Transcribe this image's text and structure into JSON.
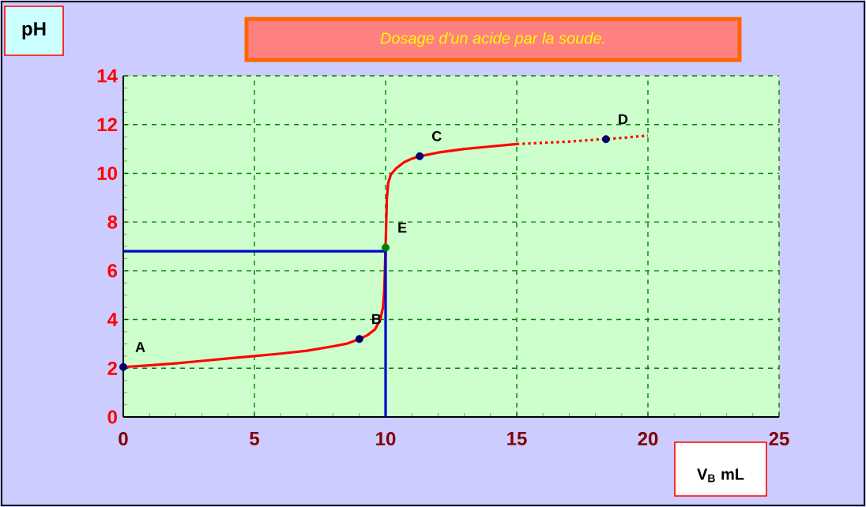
{
  "chart_data": {
    "type": "line",
    "title": "Dosage d'un acide  par la soude.",
    "xlabel": "V$_{B}$ mL",
    "ylabel": "pH",
    "xlim": [
      0,
      25
    ],
    "ylim": [
      0,
      14
    ],
    "xticks": [
      0,
      5,
      10,
      15,
      20,
      25
    ],
    "yticks": [
      0,
      2,
      4,
      6,
      8,
      10,
      12,
      14
    ],
    "grid": true,
    "series": [
      {
        "color": "#ff0000",
        "line_style": "solid",
        "x": [
          0,
          1,
          2,
          3,
          4,
          5,
          6,
          7,
          8,
          8.5,
          9,
          9.3,
          9.6,
          9.8,
          9.9,
          9.95,
          10,
          10.05,
          10.1,
          10.2,
          10.4,
          10.7,
          11,
          11.3,
          12,
          13,
          14,
          15
        ],
        "values": [
          2.05,
          2.12,
          2.2,
          2.3,
          2.4,
          2.5,
          2.6,
          2.72,
          2.9,
          3.0,
          3.2,
          3.35,
          3.6,
          4.0,
          4.5,
          5.2,
          7,
          9.0,
          9.6,
          9.95,
          10.2,
          10.45,
          10.6,
          10.7,
          10.85,
          11.0,
          11.1,
          11.2
        ]
      },
      {
        "color": "#ff0000",
        "line_style": "dotted",
        "x": [
          15,
          16,
          17,
          18,
          19,
          20
        ],
        "values": [
          11.2,
          11.25,
          11.3,
          11.38,
          11.45,
          11.55
        ]
      },
      {
        "color": "#0000cc",
        "line_style": "solid",
        "x": [
          0,
          10,
          10
        ],
        "values": [
          6.8,
          6.8,
          0
        ]
      },
      {
        "type": "scatter",
        "marker": "circle",
        "colors": [
          "#000066",
          "#000066",
          "#008000",
          "#000066",
          "#000066"
        ],
        "x": [
          0,
          9,
          10,
          11.3,
          18.4
        ],
        "values": [
          2.05,
          3.2,
          6.95,
          10.7,
          11.4
        ]
      }
    ],
    "annotations": [
      {
        "text": "A",
        "x": 0,
        "y": 2.05
      },
      {
        "text": "B",
        "x": 9,
        "y": 3.2
      },
      {
        "text": "E",
        "x": 10,
        "y": 6.95
      },
      {
        "text": "C",
        "x": 11.3,
        "y": 10.7
      },
      {
        "text": "D",
        "x": 18.4,
        "y": 11.4
      }
    ]
  }
}
